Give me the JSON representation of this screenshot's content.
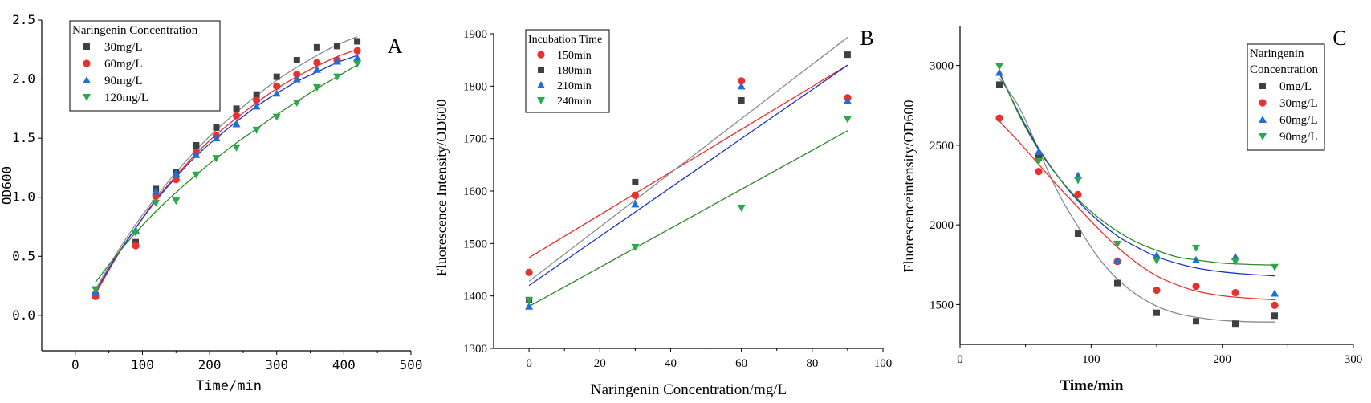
{
  "figure": {
    "panels": [
      {
        "panel_label": "A",
        "xlabel": "Time/min",
        "ylabel": "OD600",
        "legend_title": [
          "Naringenin Concentration"
        ],
        "legend_position": "top-left",
        "xticks": [
          "0",
          "100",
          "200",
          "300",
          "400",
          "500"
        ],
        "yticks": [
          "0.0",
          "0.5",
          "1.0",
          "1.5",
          "2.0",
          "2.5"
        ]
      },
      {
        "panel_label": "B",
        "xlabel": "Naringenin Concentration/mg/L",
        "ylabel": "Fluorescence Intensity/OD600",
        "legend_title": [
          "Incubation Time"
        ],
        "legend_position": "top-left",
        "xticks": [
          "0",
          "20",
          "40",
          "60",
          "80",
          "100"
        ],
        "yticks": [
          "1300",
          "1400",
          "1500",
          "1600",
          "1700",
          "1800",
          "1900"
        ]
      },
      {
        "panel_label": "C",
        "xlabel": "Time/min",
        "ylabel": "Fluorescenceintensity/OD600",
        "legend_title": [
          "Naringenin",
          "Concentration"
        ],
        "legend_position": "top-right",
        "xticks": [
          "0",
          "100",
          "200",
          "300"
        ],
        "yticks": [
          "1500",
          "2000",
          "2500",
          "3000"
        ]
      }
    ]
  },
  "colors": {
    "black": "#404040",
    "red": "#e8312f",
    "blue": "#1f6fd6",
    "green": "#2aa84a",
    "fit_black": "#8c8c8c",
    "fit_red": "#e8312f",
    "fit_blue": "#1a34c4",
    "fit_green": "#2f8a2a"
  },
  "chart_data": [
    {
      "type": "scatter",
      "panel": "A",
      "xlabel": "Time/min",
      "ylabel": "OD600",
      "xlim": [
        -50,
        500
      ],
      "ylim": [
        -0.3,
        2.5
      ],
      "grid": false,
      "x": [
        30,
        90,
        120,
        150,
        180,
        210,
        240,
        270,
        300,
        330,
        360,
        390,
        420
      ],
      "series": [
        {
          "name": "30mg/L",
          "marker": "square",
          "color": "#404040",
          "values": [
            0.17,
            0.62,
            1.07,
            1.21,
            1.44,
            1.59,
            1.75,
            1.87,
            2.02,
            2.16,
            2.27,
            2.28,
            2.32
          ],
          "fit": [
            [
              30,
              0.22
            ],
            [
              60,
              0.51
            ],
            [
              90,
              0.77
            ],
            [
              120,
              1.0
            ],
            [
              150,
              1.21
            ],
            [
              180,
              1.4
            ],
            [
              210,
              1.57
            ],
            [
              240,
              1.72
            ],
            [
              270,
              1.86
            ],
            [
              300,
              1.99
            ],
            [
              330,
              2.1
            ],
            [
              360,
              2.2
            ],
            [
              390,
              2.29
            ],
            [
              420,
              2.36
            ]
          ]
        },
        {
          "name": "60mg/L",
          "marker": "circle",
          "color": "#e8312f",
          "values": [
            0.16,
            0.59,
            1.01,
            1.15,
            1.38,
            1.52,
            1.69,
            1.82,
            1.94,
            2.04,
            2.14,
            2.16,
            2.24
          ],
          "fit": [
            [
              30,
              0.18
            ],
            [
              60,
              0.48
            ],
            [
              90,
              0.74
            ],
            [
              120,
              0.98
            ],
            [
              150,
              1.18
            ],
            [
              180,
              1.37
            ],
            [
              210,
              1.53
            ],
            [
              240,
              1.67
            ],
            [
              270,
              1.8
            ],
            [
              300,
              1.92
            ],
            [
              330,
              2.02
            ],
            [
              360,
              2.11
            ],
            [
              390,
              2.19
            ],
            [
              420,
              2.25
            ]
          ]
        },
        {
          "name": "90mg/L",
          "marker": "triangle",
          "color": "#1f6fd6",
          "values": [
            0.2,
            0.72,
            1.05,
            1.2,
            1.36,
            1.5,
            1.62,
            1.77,
            1.88,
            2.0,
            2.08,
            2.15,
            2.18
          ],
          "fit": [
            [
              30,
              0.2
            ],
            [
              60,
              0.49
            ],
            [
              90,
              0.74
            ],
            [
              120,
              0.97
            ],
            [
              150,
              1.17
            ],
            [
              180,
              1.35
            ],
            [
              210,
              1.5
            ],
            [
              240,
              1.64
            ],
            [
              270,
              1.77
            ],
            [
              300,
              1.88
            ],
            [
              330,
              1.98
            ],
            [
              360,
              2.06
            ],
            [
              390,
              2.14
            ],
            [
              420,
              2.2
            ]
          ]
        },
        {
          "name": "120mg/L",
          "marker": "triangle-down",
          "color": "#2aa84a",
          "values": [
            0.22,
            0.7,
            0.95,
            0.97,
            1.19,
            1.33,
            1.42,
            1.57,
            1.68,
            1.8,
            1.93,
            2.02,
            2.13
          ],
          "fit": [
            [
              30,
              0.28
            ],
            [
              60,
              0.5
            ],
            [
              90,
              0.7
            ],
            [
              120,
              0.88
            ],
            [
              150,
              1.04
            ],
            [
              180,
              1.19
            ],
            [
              210,
              1.33
            ],
            [
              240,
              1.46
            ],
            [
              270,
              1.58
            ],
            [
              300,
              1.7
            ],
            [
              330,
              1.81
            ],
            [
              360,
              1.92
            ],
            [
              390,
              2.02
            ],
            [
              420,
              2.12
            ]
          ]
        }
      ]
    },
    {
      "type": "scatter",
      "panel": "B",
      "xlabel": "Naringenin Concentration/mg/L",
      "ylabel": "Fluorescence Intensity/OD600",
      "xlim": [
        -10,
        100
      ],
      "ylim": [
        1300,
        1900
      ],
      "grid": false,
      "x": [
        0,
        30,
        60,
        90
      ],
      "series": [
        {
          "name": "150min",
          "marker": "circle",
          "color": "#e8312f",
          "values": [
            1445,
            1592,
            1810,
            1778
          ],
          "fit": [
            [
              0,
              1473
            ],
            [
              90,
              1840
            ]
          ]
        },
        {
          "name": "180min",
          "marker": "square",
          "color": "#404040",
          "values": [
            1392,
            1617,
            1773,
            1860
          ],
          "fit": [
            [
              0,
              1428
            ],
            [
              90,
              1893
            ]
          ]
        },
        {
          "name": "210min",
          "marker": "triangle",
          "color": "#1f6fd6",
          "values": [
            1380,
            1575,
            1800,
            1772
          ],
          "fit": [
            [
              0,
              1420
            ],
            [
              90,
              1840
            ]
          ]
        },
        {
          "name": "240min",
          "marker": "triangle-down",
          "color": "#2aa84a",
          "values": [
            1392,
            1493,
            1568,
            1737
          ],
          "fit": [
            [
              0,
              1380
            ],
            [
              90,
              1715
            ]
          ]
        }
      ]
    },
    {
      "type": "scatter",
      "panel": "C",
      "xlabel": "Time/min",
      "ylabel": "Fluorescenceintensity/OD600",
      "xlim": [
        0,
        300
      ],
      "ylim": [
        1250,
        3250
      ],
      "grid": false,
      "x": [
        30,
        60,
        90,
        120,
        150,
        180,
        210,
        240
      ],
      "series": [
        {
          "name": "0mg/L",
          "marker": "square",
          "color": "#404040",
          "values": [
            2880,
            2420,
            1945,
            1635,
            1448,
            1395,
            1380,
            1430
          ],
          "fit": [
            [
              30,
              2920
            ],
            [
              45,
              2740
            ],
            [
              60,
              2470
            ],
            [
              75,
              2200
            ],
            [
              90,
              1990
            ],
            [
              105,
              1800
            ],
            [
              120,
              1660
            ],
            [
              135,
              1560
            ],
            [
              150,
              1490
            ],
            [
              165,
              1445
            ],
            [
              180,
              1420
            ],
            [
              200,
              1400
            ],
            [
              220,
              1392
            ],
            [
              240,
              1390
            ]
          ]
        },
        {
          "name": "30mg/L",
          "marker": "circle",
          "color": "#e8312f",
          "values": [
            2670,
            2335,
            2190,
            1770,
            1590,
            1615,
            1575,
            1495
          ],
          "fit": [
            [
              30,
              2650
            ],
            [
              45,
              2520
            ],
            [
              60,
              2380
            ],
            [
              75,
              2240
            ],
            [
              90,
              2110
            ],
            [
              105,
              1980
            ],
            [
              120,
              1860
            ],
            [
              135,
              1760
            ],
            [
              150,
              1680
            ],
            [
              165,
              1625
            ],
            [
              180,
              1585
            ],
            [
              200,
              1555
            ],
            [
              220,
              1540
            ],
            [
              240,
              1530
            ]
          ]
        },
        {
          "name": "60mg/L",
          "marker": "triangle",
          "color": "#1f6fd6",
          "values": [
            2955,
            2460,
            2310,
            1775,
            1810,
            1780,
            1800,
            1570
          ],
          "fit": [
            [
              30,
              2950
            ],
            [
              45,
              2700
            ],
            [
              60,
              2480
            ],
            [
              75,
              2300
            ],
            [
              90,
              2150
            ],
            [
              105,
              2030
            ],
            [
              120,
              1930
            ],
            [
              135,
              1860
            ],
            [
              150,
              1800
            ],
            [
              165,
              1760
            ],
            [
              180,
              1730
            ],
            [
              200,
              1705
            ],
            [
              220,
              1690
            ],
            [
              240,
              1680
            ]
          ]
        },
        {
          "name": "90mg/L",
          "marker": "triangle-down",
          "color": "#2aa84a",
          "values": [
            2995,
            2400,
            2280,
            1880,
            1775,
            1855,
            1770,
            1735
          ],
          "fit": [
            [
              30,
              2960
            ],
            [
              45,
              2690
            ],
            [
              60,
              2470
            ],
            [
              75,
              2300
            ],
            [
              90,
              2160
            ],
            [
              105,
              2050
            ],
            [
              120,
              1960
            ],
            [
              135,
              1890
            ],
            [
              150,
              1840
            ],
            [
              165,
              1800
            ],
            [
              180,
              1780
            ],
            [
              200,
              1760
            ],
            [
              220,
              1752
            ],
            [
              240,
              1748
            ]
          ]
        }
      ]
    }
  ]
}
